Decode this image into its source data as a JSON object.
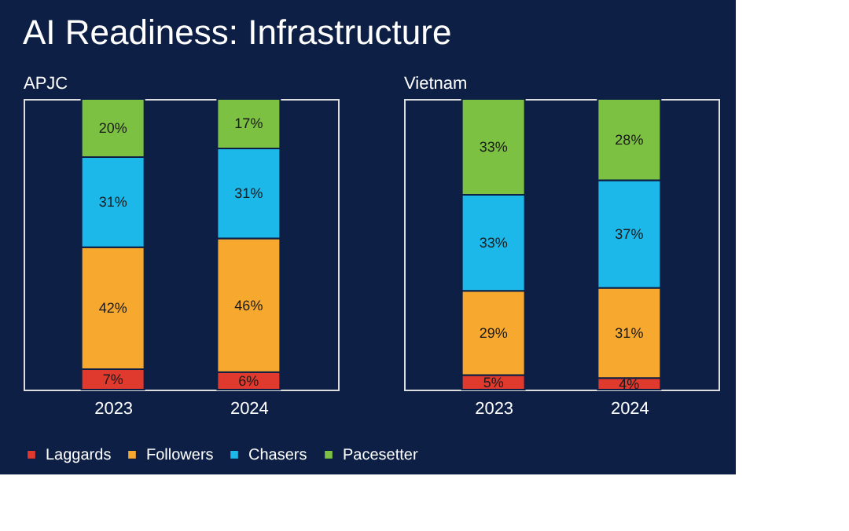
{
  "chart_data": [
    {
      "type": "bar",
      "title": "AI Readiness: Infrastructure",
      "subtitle": "APJC",
      "stacked": true,
      "legend": "bottom",
      "grid": false,
      "tick_labels": "x",
      "categories": [
        "2023",
        "2024"
      ],
      "series": [
        {
          "name": "Laggards",
          "color": "#e03a2f",
          "values": [
            7,
            6
          ],
          "value_labels": [
            "7%",
            "6%"
          ]
        },
        {
          "name": "Followers",
          "color": "#f7a82e",
          "values": [
            42,
            46
          ],
          "value_labels": [
            "42%",
            "46%"
          ]
        },
        {
          "name": "Chasers",
          "color": "#1cb8ea",
          "values": [
            31,
            31
          ],
          "value_labels": [
            "31%",
            "31%"
          ]
        },
        {
          "name": "Pacesetter",
          "color": "#7dc143",
          "values": [
            20,
            17
          ],
          "value_labels": [
            "20%",
            "17%"
          ]
        }
      ]
    },
    {
      "type": "bar",
      "subtitle": "Vietnam",
      "stacked": true,
      "legend": "bottom",
      "grid": false,
      "tick_labels": "x",
      "categories": [
        "2023",
        "2024"
      ],
      "series": [
        {
          "name": "Laggards",
          "color": "#e03a2f",
          "values": [
            5,
            4
          ],
          "value_labels": [
            "5%",
            "4%"
          ]
        },
        {
          "name": "Followers",
          "color": "#f7a82e",
          "values": [
            29,
            31
          ],
          "value_labels": [
            "29%",
            "31%"
          ]
        },
        {
          "name": "Chasers",
          "color": "#1cb8ea",
          "values": [
            33,
            37
          ],
          "value_labels": [
            "33%",
            "37%"
          ]
        },
        {
          "name": "Pacesetter",
          "color": "#7dc143",
          "values": [
            33,
            28
          ],
          "value_labels": [
            "33%",
            "28%"
          ]
        }
      ]
    }
  ]
}
